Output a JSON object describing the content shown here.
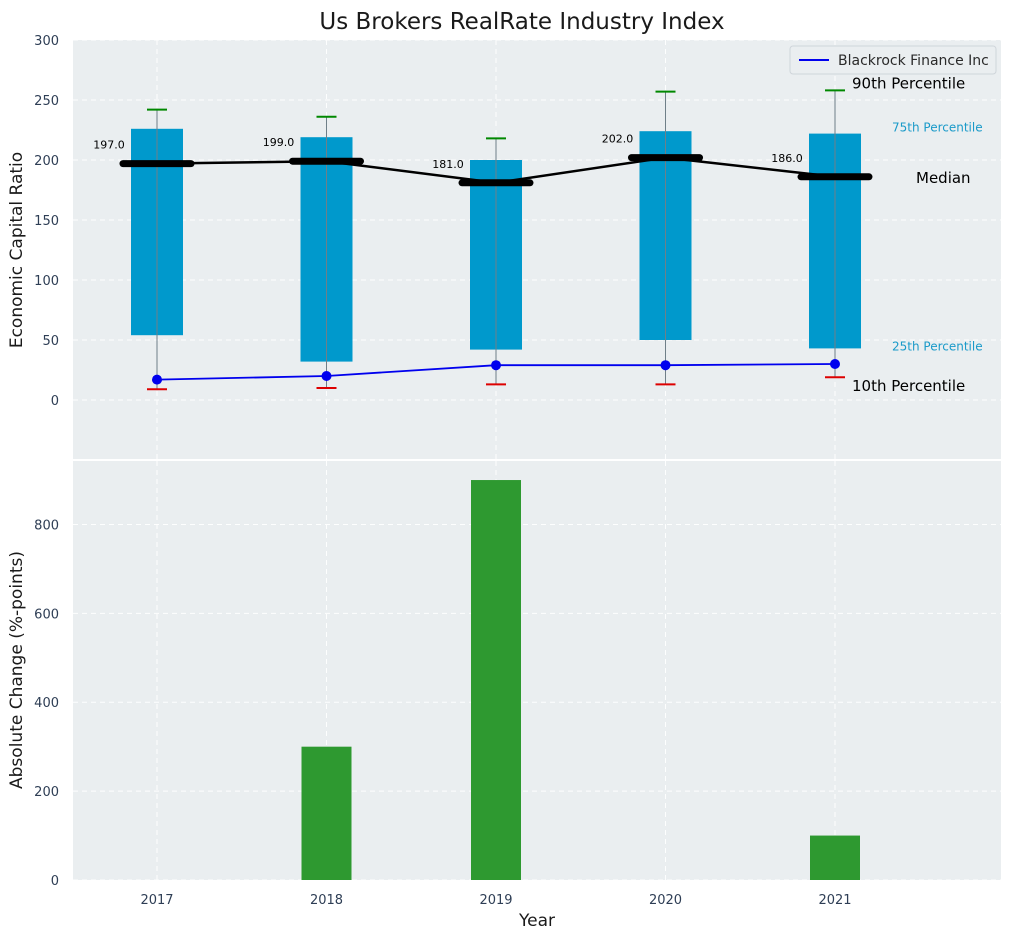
{
  "chart_data": [
    {
      "type": "bar",
      "title": "Us Brokers RealRate Industry Index",
      "xlabel": "",
      "ylabel": "Economic Capital Ratio",
      "categories": [
        "2017",
        "2018",
        "2019",
        "2020",
        "2021"
      ],
      "ylim": [
        -50,
        300
      ],
      "yticks": [
        0,
        50,
        100,
        150,
        200,
        250,
        300
      ],
      "grid": true,
      "legend_position": "top-right",
      "percentiles": {
        "p10": [
          9,
          10,
          13,
          13,
          19
        ],
        "p25": [
          54,
          32,
          42,
          50,
          43
        ],
        "median": [
          197,
          199,
          181,
          202,
          186
        ],
        "p75": [
          226,
          219,
          200,
          224,
          222
        ],
        "p90": [
          242,
          236,
          218,
          257,
          258
        ]
      },
      "median_labels": [
        "197.0",
        "199.0",
        "181.0",
        "202.0",
        "186.0"
      ],
      "series": [
        {
          "name": "Blackrock Finance Inc",
          "values": [
            17,
            20,
            29,
            29,
            30
          ]
        }
      ],
      "annotations": {
        "p90": "90th Percentile",
        "p75": "75th Percentile",
        "median": "Median",
        "p25": "25th Percentile",
        "p10": "10th Percentile"
      },
      "colors": {
        "box": "#0099cc",
        "median_line": "#000000",
        "series_line": "#0000ee",
        "p90_cap": "#008800",
        "p10_cap": "#dd0000",
        "background": "#eaeef0"
      }
    },
    {
      "type": "bar",
      "xlabel": "Year",
      "ylabel": "Absolute Change (%-points)",
      "categories": [
        "2017",
        "2018",
        "2019",
        "2020",
        "2021"
      ],
      "values": [
        0,
        300,
        900,
        0,
        100
      ],
      "ylim": [
        0,
        950
      ],
      "yticks": [
        0,
        200,
        400,
        600,
        800
      ],
      "grid": true,
      "colors": {
        "bar": "#2e9930",
        "background": "#eaeef0"
      }
    }
  ]
}
